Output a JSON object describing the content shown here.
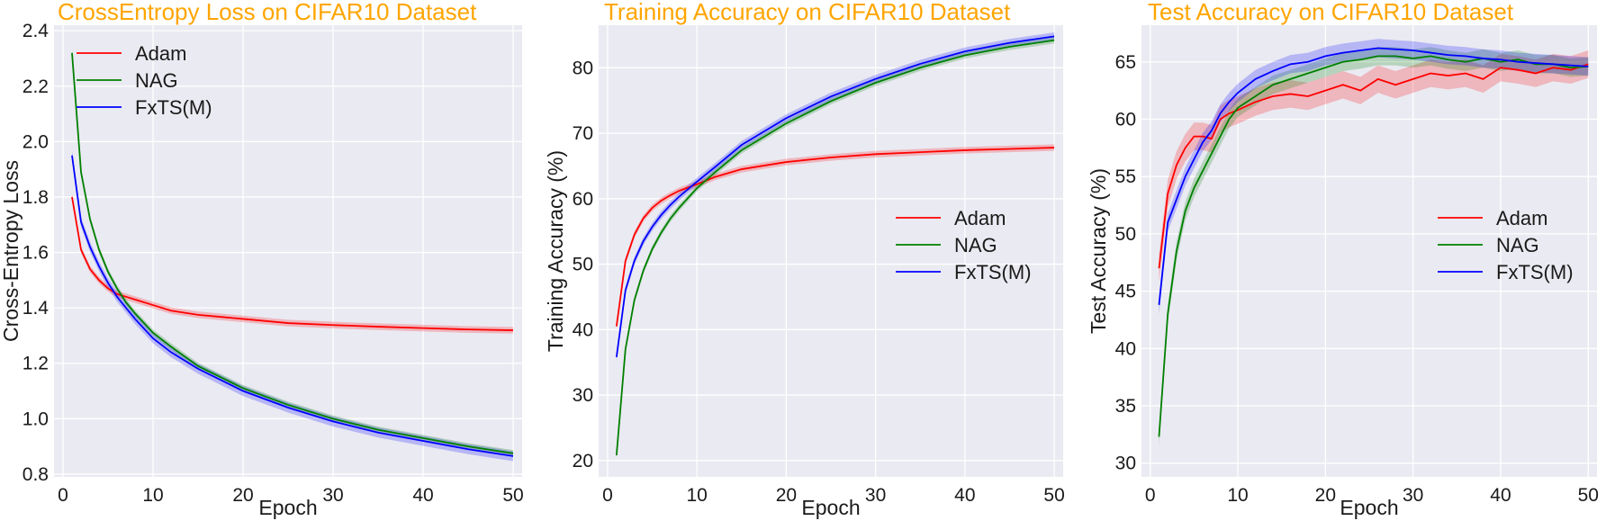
{
  "colors": {
    "title": "#ffa500",
    "plot_bg": "#eaeaf2",
    "grid": "#ffffff",
    "adam": "#ff0000",
    "nag": "#008000",
    "fxts": "#0000ff"
  },
  "chart_data": [
    {
      "type": "line",
      "title": "CrossEntropy Loss on CIFAR10 Dataset",
      "xlabel": "Epoch",
      "ylabel": "Cross-Entropy Loss",
      "xlim": [
        -1,
        51
      ],
      "ylim": [
        0.79,
        2.42
      ],
      "xticks": [
        0,
        10,
        20,
        30,
        40,
        50
      ],
      "yticks": [
        0.8,
        1.0,
        1.2,
        1.4,
        1.6,
        1.8,
        2.0,
        2.2,
        2.4
      ],
      "ytick_labels": [
        "0.8",
        "1.0",
        "1.2",
        "1.4",
        "1.6",
        "1.8",
        "2.0",
        "2.2",
        "2.4"
      ],
      "legend": {
        "position": "top-left",
        "entries": [
          "Adam",
          "NAG",
          "FxTS(M)"
        ]
      },
      "grid": true,
      "x": [
        1,
        2,
        3,
        4,
        5,
        6,
        7,
        8,
        10,
        12,
        15,
        20,
        25,
        30,
        35,
        40,
        45,
        50
      ],
      "series": [
        {
          "name": "Adam",
          "color_key": "adam",
          "band": 0.012,
          "values": [
            1.8,
            1.61,
            1.54,
            1.5,
            1.47,
            1.45,
            1.44,
            1.43,
            1.41,
            1.39,
            1.375,
            1.36,
            1.345,
            1.338,
            1.332,
            1.327,
            1.322,
            1.319
          ]
        },
        {
          "name": "NAG",
          "color_key": "nag",
          "band": 0.012,
          "values": [
            2.32,
            1.89,
            1.72,
            1.61,
            1.53,
            1.47,
            1.42,
            1.38,
            1.31,
            1.26,
            1.19,
            1.11,
            1.05,
            1.0,
            0.96,
            0.93,
            0.9,
            0.875
          ]
        },
        {
          "name": "FxTS(M)",
          "color_key": "fxts",
          "band": 0.018,
          "values": [
            1.95,
            1.71,
            1.62,
            1.55,
            1.49,
            1.44,
            1.4,
            1.36,
            1.29,
            1.24,
            1.18,
            1.1,
            1.04,
            0.99,
            0.95,
            0.92,
            0.89,
            0.865
          ]
        }
      ]
    },
    {
      "type": "line",
      "title": "Training Accuracy on CIFAR10 Dataset",
      "xlabel": "Epoch",
      "ylabel": "Training Accuracy (%)",
      "xlim": [
        -1,
        51
      ],
      "ylim": [
        17.5,
        86.5
      ],
      "xticks": [
        0,
        10,
        20,
        30,
        40,
        50
      ],
      "yticks": [
        20,
        30,
        40,
        50,
        60,
        70,
        80
      ],
      "ytick_labels": [
        "20",
        "30",
        "40",
        "50",
        "60",
        "70",
        "80"
      ],
      "legend": {
        "position": "center-right",
        "entries": [
          "Adam",
          "NAG",
          "FxTS(M)"
        ]
      },
      "grid": true,
      "x": [
        1,
        2,
        3,
        4,
        5,
        6,
        7,
        8,
        10,
        12,
        15,
        20,
        25,
        30,
        35,
        40,
        45,
        50
      ],
      "series": [
        {
          "name": "Adam",
          "color_key": "adam",
          "band": 0.5,
          "values": [
            40.5,
            50.5,
            54.5,
            57.0,
            58.6,
            59.7,
            60.5,
            61.2,
            62.2,
            63.3,
            64.5,
            65.6,
            66.3,
            66.8,
            67.1,
            67.4,
            67.6,
            67.8
          ]
        },
        {
          "name": "NAG",
          "color_key": "nag",
          "band": 0.5,
          "values": [
            20.8,
            37.0,
            44.5,
            49.0,
            52.3,
            54.8,
            56.9,
            58.6,
            61.6,
            64.0,
            67.4,
            71.5,
            74.9,
            77.7,
            80.0,
            81.9,
            83.2,
            84.2
          ]
        },
        {
          "name": "FxTS(M)",
          "color_key": "fxts",
          "band": 0.6,
          "values": [
            35.8,
            46.0,
            50.5,
            53.5,
            55.7,
            57.5,
            59.0,
            60.3,
            62.6,
            64.8,
            68.2,
            72.3,
            75.6,
            78.3,
            80.6,
            82.5,
            83.8,
            84.8
          ]
        }
      ]
    },
    {
      "type": "line",
      "title": "Test Accuracy on CIFAR10 Dataset",
      "xlabel": "Epoch",
      "ylabel": "Test Accuracy (%)",
      "xlim": [
        -1,
        51
      ],
      "ylim": [
        28.8,
        68.2
      ],
      "xticks": [
        0,
        10,
        20,
        30,
        40,
        50
      ],
      "yticks": [
        30,
        35,
        40,
        45,
        50,
        55,
        60,
        65
      ],
      "ytick_labels": [
        "30",
        "35",
        "40",
        "45",
        "50",
        "55",
        "60",
        "65"
      ],
      "legend": {
        "position": "center-right",
        "entries": [
          "Adam",
          "NAG",
          "FxTS(M)"
        ]
      },
      "grid": true,
      "x": [
        1,
        2,
        3,
        4,
        5,
        6,
        7,
        8,
        9,
        10,
        12,
        14,
        16,
        18,
        20,
        22,
        24,
        26,
        28,
        30,
        32,
        34,
        36,
        38,
        40,
        42,
        44,
        46,
        48,
        50
      ],
      "series": [
        {
          "name": "Adam",
          "color_key": "adam",
          "band": 1.2,
          "values": [
            47.0,
            53.5,
            56.0,
            57.5,
            58.5,
            58.5,
            58.3,
            60.0,
            60.5,
            60.8,
            61.5,
            62.0,
            62.2,
            62.0,
            62.5,
            63.0,
            62.5,
            63.5,
            63.0,
            63.5,
            64.0,
            63.8,
            64.0,
            63.5,
            64.5,
            64.3,
            64.0,
            64.5,
            64.3,
            64.8
          ]
        },
        {
          "name": "NAG",
          "color_key": "nag",
          "band": 0.8,
          "values": [
            32.3,
            43.0,
            48.5,
            52.0,
            54.0,
            55.5,
            57.0,
            58.5,
            60.0,
            61.0,
            62.0,
            63.0,
            63.5,
            64.0,
            64.5,
            65.0,
            65.2,
            65.5,
            65.5,
            65.3,
            65.5,
            65.2,
            65.0,
            65.3,
            65.0,
            65.2,
            64.8,
            64.8,
            64.5,
            64.6
          ]
        },
        {
          "name": "FxTS(M)",
          "color_key": "fxts",
          "band": 0.8,
          "values": [
            43.8,
            51.0,
            53.0,
            55.0,
            56.5,
            58.0,
            59.0,
            60.5,
            61.5,
            62.3,
            63.5,
            64.2,
            64.8,
            65.0,
            65.5,
            65.8,
            66.0,
            66.2,
            66.1,
            66.0,
            65.8,
            65.6,
            65.5,
            65.3,
            65.2,
            65.0,
            64.9,
            64.8,
            64.7,
            64.6
          ]
        }
      ]
    }
  ]
}
